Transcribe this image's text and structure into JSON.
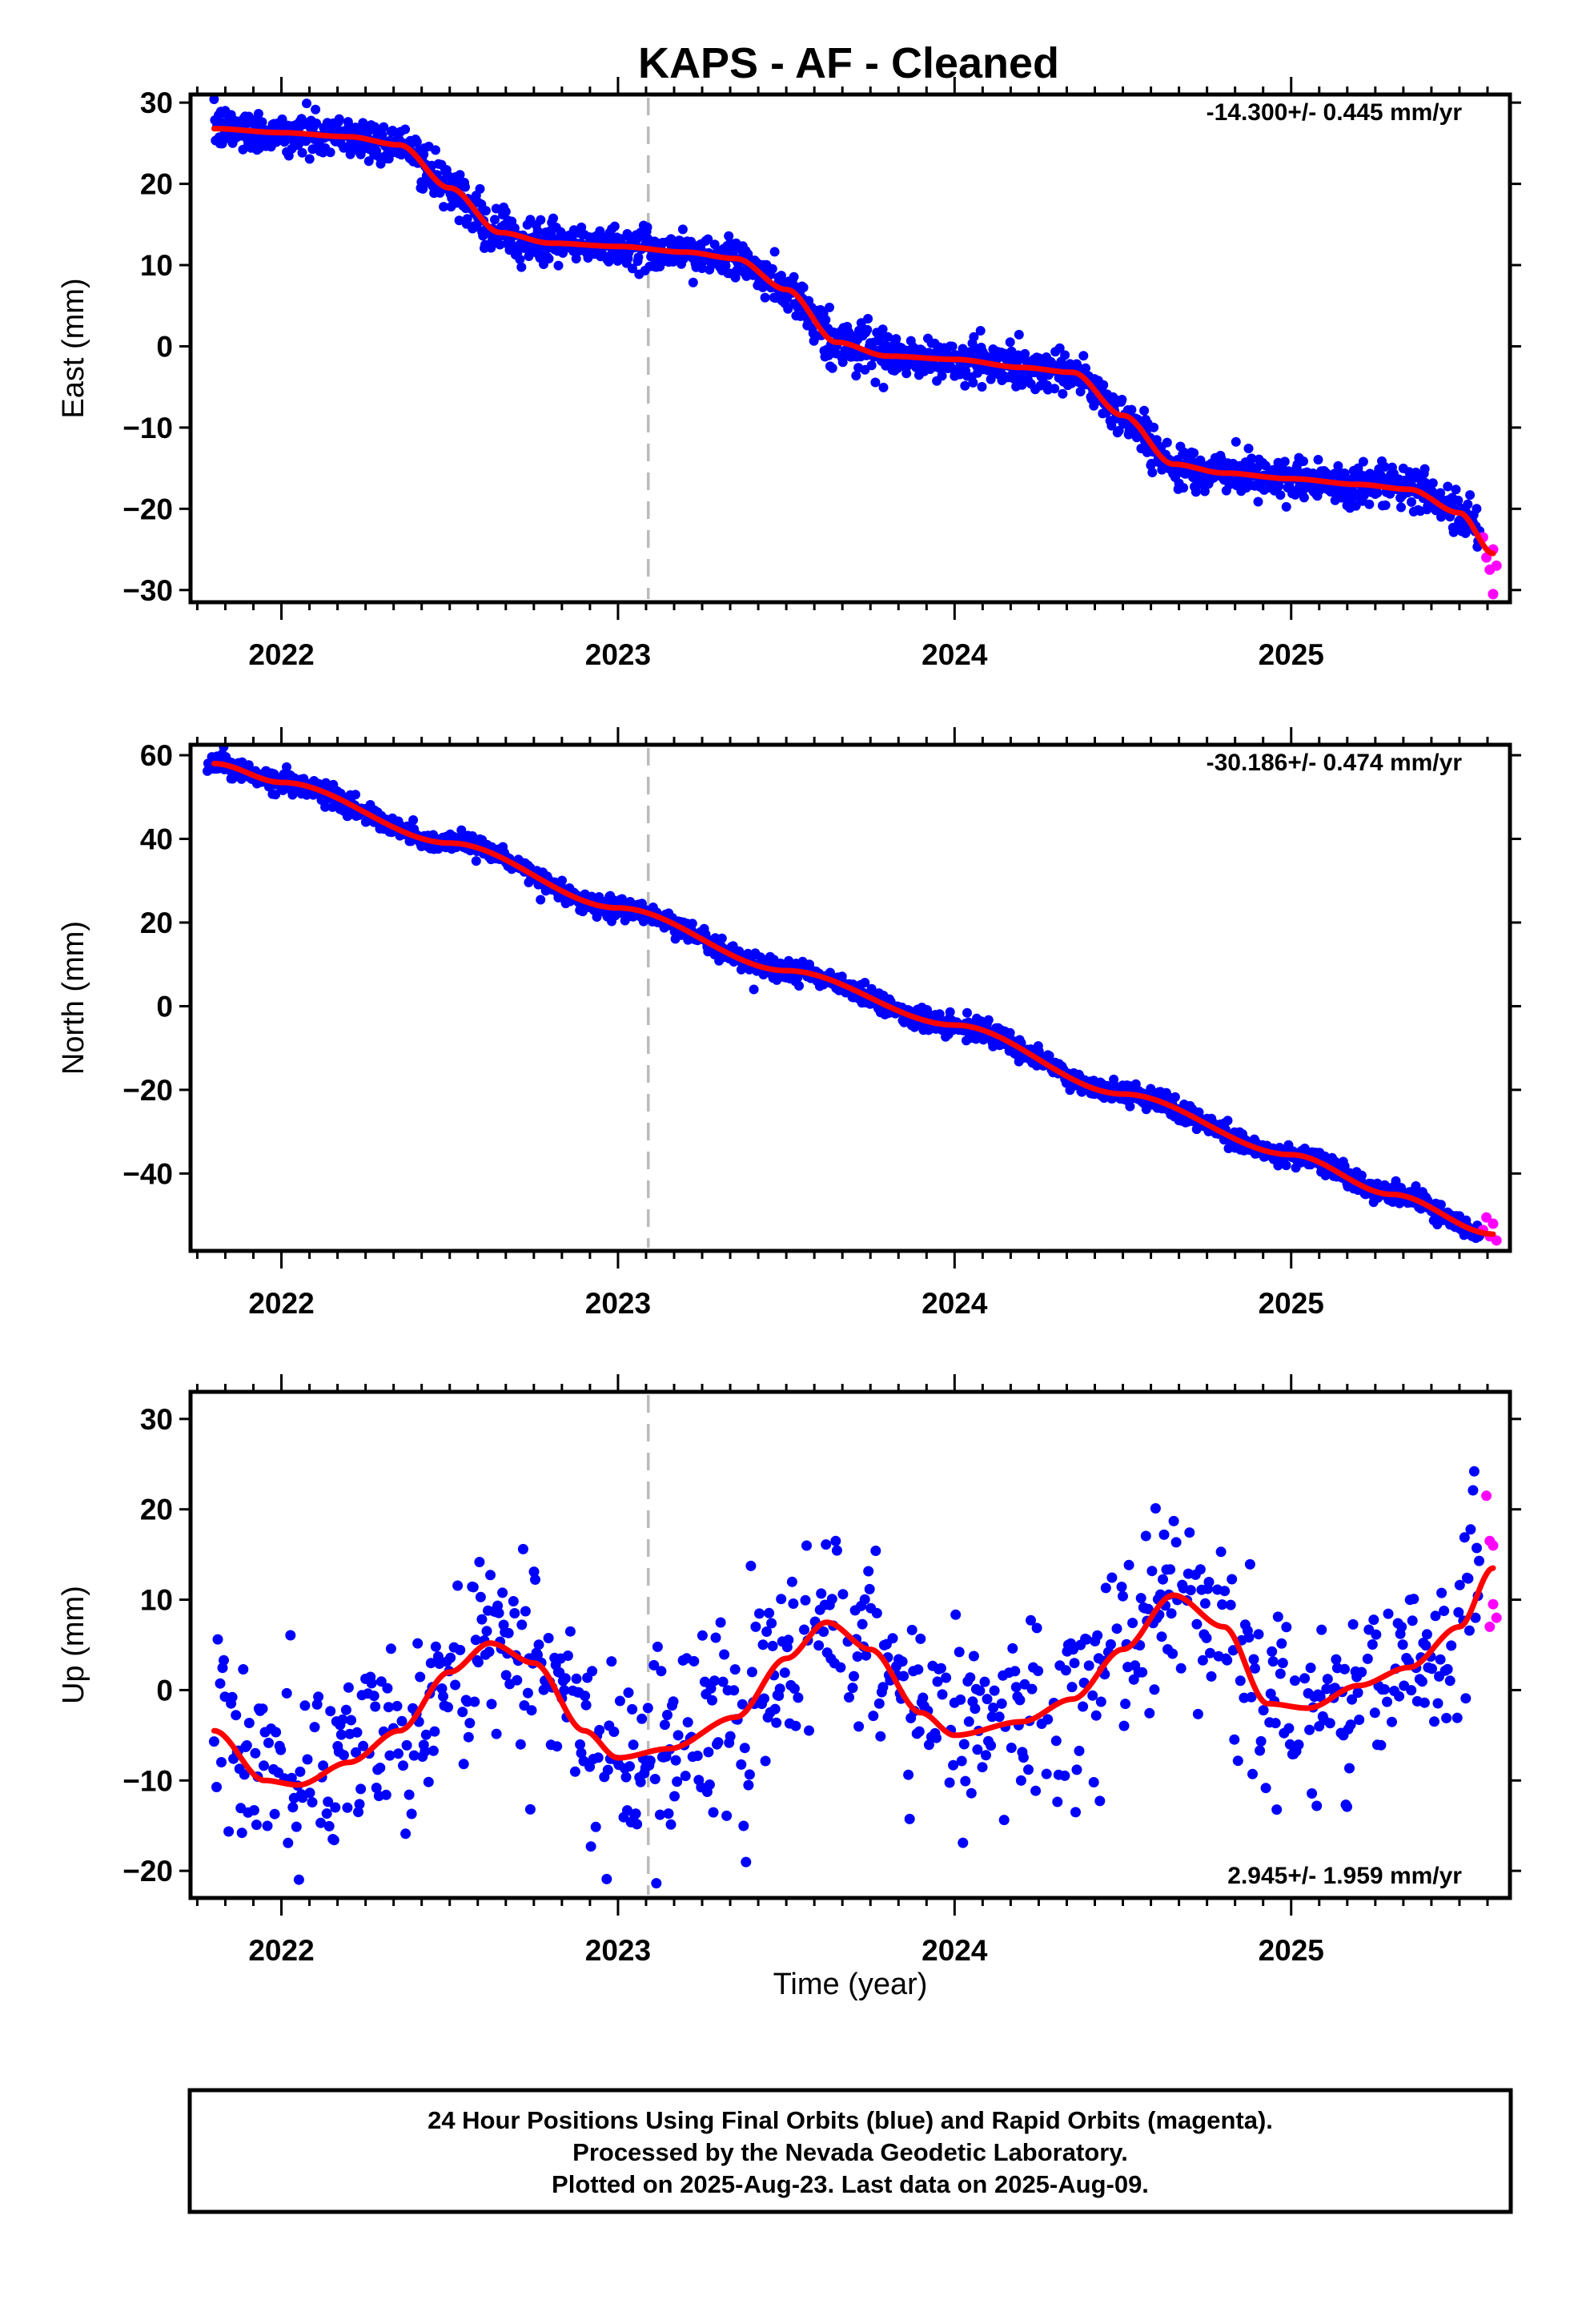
{
  "title": "KAPS  - AF - Cleaned",
  "xlabel": "Time (year)",
  "footer": {
    "line1": "24 Hour Positions Using Final Orbits (blue) and Rapid Orbits (magenta).",
    "line2": "Processed by the Nevada Geodetic Laboratory.",
    "line3": "Plotted on 2025-Aug-23. Last data on 2025-Aug-09."
  },
  "colors": {
    "final_orbits": "#0000ff",
    "rapid_orbits": "#ff00ff",
    "model_fit": "#ff0000",
    "reference_line": "#bbbbbb",
    "frame": "#000000"
  },
  "chart_data": [
    {
      "type": "scatter",
      "ylabel": "East (mm)",
      "rate_annotation": "-14.300+/- 0.445 mm/yr",
      "rate_position": "top-right",
      "x_ticks": [
        "2022",
        "2023",
        "2024",
        "2025"
      ],
      "y_ticks": [
        "30",
        "20",
        "10",
        "0",
        "−10",
        "−20",
        "−30"
      ],
      "xlim": [
        2021.73,
        2025.65
      ],
      "ylim": [
        -31.5,
        31
      ],
      "reference_line_x": 2023.09,
      "fit_curve": {
        "x": [
          2021.8,
          2022.0,
          2022.2,
          2022.35,
          2022.5,
          2022.65,
          2022.8,
          2023.0,
          2023.2,
          2023.35,
          2023.5,
          2023.65,
          2023.8,
          2024.0,
          2024.2,
          2024.35,
          2024.5,
          2024.65,
          2024.8,
          2025.0,
          2025.2,
          2025.35,
          2025.5,
          2025.6
        ],
        "y": [
          26.8,
          26.3,
          25.8,
          24.8,
          19.5,
          14.0,
          12.7,
          12.3,
          11.6,
          10.8,
          7.0,
          0.5,
          -1.2,
          -1.6,
          -2.6,
          -3.2,
          -8.5,
          -14.5,
          -15.6,
          -16.3,
          -17.0,
          -17.6,
          -20.5,
          -25.5
        ]
      },
      "final_noise_mm": 1.3,
      "rapid_points": {
        "x": [
          2025.57,
          2025.58,
          2025.59,
          2025.6,
          2025.6,
          2025.61
        ],
        "y": [
          -23.5,
          -26.0,
          -27.5,
          -25.0,
          -30.5,
          -27.0
        ]
      }
    },
    {
      "type": "scatter",
      "ylabel": "North (mm)",
      "rate_annotation": "-30.186+/- 0.474 mm/yr",
      "rate_position": "top-right",
      "x_ticks": [
        "2022",
        "2023",
        "2024",
        "2025"
      ],
      "y_ticks": [
        "60",
        "40",
        "20",
        "0",
        "−20",
        "−40"
      ],
      "xlim": [
        2021.73,
        2025.65
      ],
      "ylim": [
        -58.5,
        62.5
      ],
      "reference_line_x": 2023.09,
      "fit_curve": {
        "x": [
          2021.8,
          2022.0,
          2022.5,
          2023.0,
          2023.5,
          2024.0,
          2024.5,
          2025.0,
          2025.3,
          2025.6
        ],
        "y": [
          58.0,
          53.5,
          39.0,
          23.5,
          8.5,
          -4.5,
          -21.0,
          -35.5,
          -45.0,
          -54.5
        ]
      },
      "final_noise_mm": 1.2,
      "rapid_points": {
        "x": [
          2025.57,
          2025.58,
          2025.59,
          2025.6,
          2025.61
        ],
        "y": [
          -53.5,
          -50.5,
          -55.0,
          -52.0,
          -56.0
        ]
      }
    },
    {
      "type": "scatter",
      "ylabel": "Up (mm)",
      "rate_annotation": "2.945+/- 1.959 mm/yr",
      "rate_position": "bottom-right",
      "x_ticks": [
        "2022",
        "2023",
        "2024",
        "2025"
      ],
      "y_ticks": [
        "30",
        "20",
        "10",
        "0",
        "−10",
        "−20"
      ],
      "xlim": [
        2021.73,
        2025.65
      ],
      "ylim": [
        -23,
        33
      ],
      "reference_line_x": 2023.09,
      "fit_curve": {
        "x": [
          2021.8,
          2021.95,
          2022.05,
          2022.2,
          2022.35,
          2022.5,
          2022.62,
          2022.75,
          2022.9,
          2023.0,
          2023.15,
          2023.35,
          2023.5,
          2023.62,
          2023.75,
          2023.9,
          2024.0,
          2024.2,
          2024.35,
          2024.5,
          2024.65,
          2024.8,
          2024.93,
          2025.05,
          2025.2,
          2025.35,
          2025.5,
          2025.6
        ],
        "y": [
          -4.5,
          -10.0,
          -10.5,
          -8.0,
          -4.5,
          2.0,
          5.2,
          3.0,
          -4.5,
          -7.5,
          -6.5,
          -3.0,
          3.5,
          7.5,
          4.5,
          -2.5,
          -5.0,
          -3.5,
          -1.0,
          4.5,
          10.5,
          7.0,
          -1.5,
          -2.0,
          0.5,
          2.5,
          7.0,
          13.5
        ]
      },
      "final_noise_mm": 5.5,
      "rapid_points": {
        "x": [
          2025.58,
          2025.59,
          2025.6,
          2025.6,
          2025.61,
          2025.59
        ],
        "y": [
          21.5,
          16.5,
          16.0,
          9.5,
          8.0,
          7.0
        ]
      }
    }
  ]
}
